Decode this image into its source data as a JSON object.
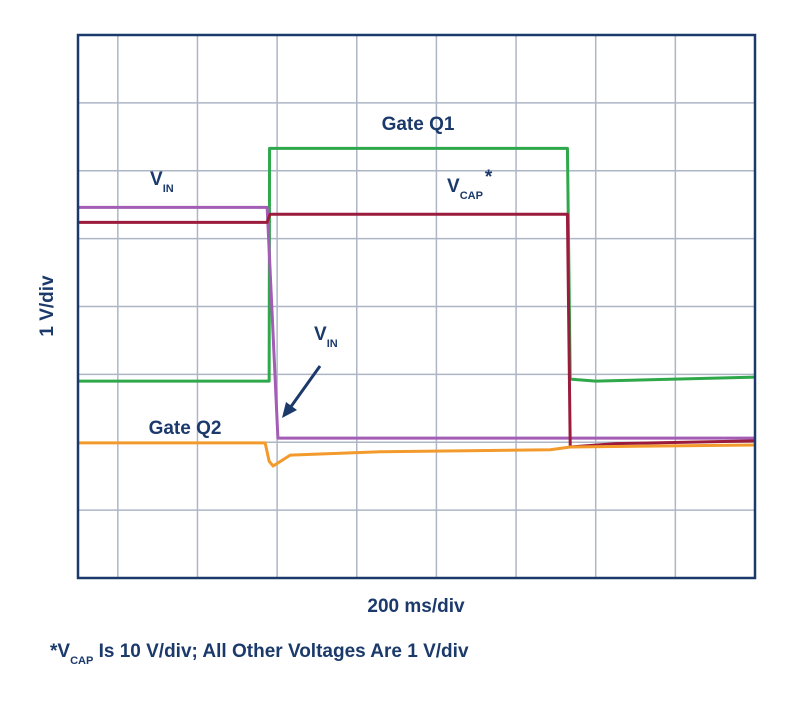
{
  "chart_data": {
    "type": "line",
    "x_label": "200 ms/div",
    "y_label": "1 V/div",
    "xlim": [
      -100,
      1600
    ],
    "ylim": [
      0,
      8
    ],
    "xticks": [
      0,
      200,
      400,
      600,
      800,
      1000,
      1200,
      1400
    ],
    "yticks": [
      1,
      2,
      3,
      4,
      5,
      6,
      7
    ],
    "grid": true,
    "series": [
      {
        "color": "#2fa84b",
        "x": [
          -100,
          380,
          381,
          1129,
          1136,
          1200,
          1600
        ],
        "values": [
          2.9,
          2.9,
          6.33,
          6.33,
          2.93,
          2.9,
          2.96
        ]
      },
      {
        "color": "#a35db4",
        "x": [
          -100,
          375,
          402,
          1600
        ],
        "values": [
          5.46,
          5.46,
          2.06,
          2.06
        ]
      },
      {
        "color": "#9b1b3c",
        "x": [
          -100,
          375,
          382,
          1129,
          1136,
          1250,
          1600
        ],
        "values": [
          5.24,
          5.24,
          5.36,
          5.36,
          1.93,
          1.98,
          2.02
        ]
      },
      {
        "color": "#f39a2c",
        "x": [
          -100,
          370,
          380,
          390,
          433,
          659,
          1086,
          1136,
          1600
        ],
        "values": [
          1.99,
          1.99,
          1.72,
          1.65,
          1.81,
          1.86,
          1.89,
          1.93,
          1.96
        ]
      }
    ],
    "annotations": [
      {
        "text": "Gate Q1"
      },
      {
        "text": "V",
        "sub": "IN"
      },
      {
        "text": "V",
        "sub": "CAP",
        "sup": "*"
      },
      {
        "text": "V",
        "sub": "IN"
      },
      {
        "text": "Gate Q2"
      }
    ],
    "footnote": {
      "text": "*V",
      "sub": "CAP",
      "after": " Is 10 V/div; All Other Voltages Are 1 V/div"
    }
  }
}
